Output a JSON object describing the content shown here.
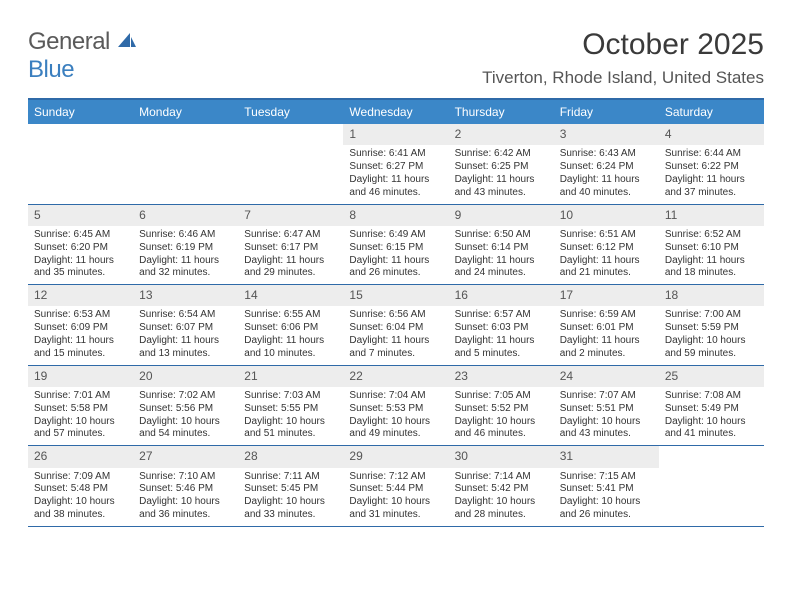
{
  "brand": {
    "left": "General",
    "right": "Blue"
  },
  "title": "October 2025",
  "location": "Tiverton, Rhode Island, United States",
  "colors": {
    "header_bg": "#3b87c8",
    "header_border": "#2f6aa8",
    "daynum_bg": "#ededed",
    "text": "#333333",
    "title_color": "#3a3a3a",
    "location_color": "#555555"
  },
  "dow": [
    "Sunday",
    "Monday",
    "Tuesday",
    "Wednesday",
    "Thursday",
    "Friday",
    "Saturday"
  ],
  "weeks": [
    [
      {
        "num": "",
        "empty": true
      },
      {
        "num": "",
        "empty": true
      },
      {
        "num": "",
        "empty": true
      },
      {
        "num": "1",
        "sunrise": "6:41 AM",
        "sunset": "6:27 PM",
        "dayl1": "Daylight: 11 hours",
        "dayl2": "and 46 minutes."
      },
      {
        "num": "2",
        "sunrise": "6:42 AM",
        "sunset": "6:25 PM",
        "dayl1": "Daylight: 11 hours",
        "dayl2": "and 43 minutes."
      },
      {
        "num": "3",
        "sunrise": "6:43 AM",
        "sunset": "6:24 PM",
        "dayl1": "Daylight: 11 hours",
        "dayl2": "and 40 minutes."
      },
      {
        "num": "4",
        "sunrise": "6:44 AM",
        "sunset": "6:22 PM",
        "dayl1": "Daylight: 11 hours",
        "dayl2": "and 37 minutes."
      }
    ],
    [
      {
        "num": "5",
        "sunrise": "6:45 AM",
        "sunset": "6:20 PM",
        "dayl1": "Daylight: 11 hours",
        "dayl2": "and 35 minutes."
      },
      {
        "num": "6",
        "sunrise": "6:46 AM",
        "sunset": "6:19 PM",
        "dayl1": "Daylight: 11 hours",
        "dayl2": "and 32 minutes."
      },
      {
        "num": "7",
        "sunrise": "6:47 AM",
        "sunset": "6:17 PM",
        "dayl1": "Daylight: 11 hours",
        "dayl2": "and 29 minutes."
      },
      {
        "num": "8",
        "sunrise": "6:49 AM",
        "sunset": "6:15 PM",
        "dayl1": "Daylight: 11 hours",
        "dayl2": "and 26 minutes."
      },
      {
        "num": "9",
        "sunrise": "6:50 AM",
        "sunset": "6:14 PM",
        "dayl1": "Daylight: 11 hours",
        "dayl2": "and 24 minutes."
      },
      {
        "num": "10",
        "sunrise": "6:51 AM",
        "sunset": "6:12 PM",
        "dayl1": "Daylight: 11 hours",
        "dayl2": "and 21 minutes."
      },
      {
        "num": "11",
        "sunrise": "6:52 AM",
        "sunset": "6:10 PM",
        "dayl1": "Daylight: 11 hours",
        "dayl2": "and 18 minutes."
      }
    ],
    [
      {
        "num": "12",
        "sunrise": "6:53 AM",
        "sunset": "6:09 PM",
        "dayl1": "Daylight: 11 hours",
        "dayl2": "and 15 minutes."
      },
      {
        "num": "13",
        "sunrise": "6:54 AM",
        "sunset": "6:07 PM",
        "dayl1": "Daylight: 11 hours",
        "dayl2": "and 13 minutes."
      },
      {
        "num": "14",
        "sunrise": "6:55 AM",
        "sunset": "6:06 PM",
        "dayl1": "Daylight: 11 hours",
        "dayl2": "and 10 minutes."
      },
      {
        "num": "15",
        "sunrise": "6:56 AM",
        "sunset": "6:04 PM",
        "dayl1": "Daylight: 11 hours",
        "dayl2": "and 7 minutes."
      },
      {
        "num": "16",
        "sunrise": "6:57 AM",
        "sunset": "6:03 PM",
        "dayl1": "Daylight: 11 hours",
        "dayl2": "and 5 minutes."
      },
      {
        "num": "17",
        "sunrise": "6:59 AM",
        "sunset": "6:01 PM",
        "dayl1": "Daylight: 11 hours",
        "dayl2": "and 2 minutes."
      },
      {
        "num": "18",
        "sunrise": "7:00 AM",
        "sunset": "5:59 PM",
        "dayl1": "Daylight: 10 hours",
        "dayl2": "and 59 minutes."
      }
    ],
    [
      {
        "num": "19",
        "sunrise": "7:01 AM",
        "sunset": "5:58 PM",
        "dayl1": "Daylight: 10 hours",
        "dayl2": "and 57 minutes."
      },
      {
        "num": "20",
        "sunrise": "7:02 AM",
        "sunset": "5:56 PM",
        "dayl1": "Daylight: 10 hours",
        "dayl2": "and 54 minutes."
      },
      {
        "num": "21",
        "sunrise": "7:03 AM",
        "sunset": "5:55 PM",
        "dayl1": "Daylight: 10 hours",
        "dayl2": "and 51 minutes."
      },
      {
        "num": "22",
        "sunrise": "7:04 AM",
        "sunset": "5:53 PM",
        "dayl1": "Daylight: 10 hours",
        "dayl2": "and 49 minutes."
      },
      {
        "num": "23",
        "sunrise": "7:05 AM",
        "sunset": "5:52 PM",
        "dayl1": "Daylight: 10 hours",
        "dayl2": "and 46 minutes."
      },
      {
        "num": "24",
        "sunrise": "7:07 AM",
        "sunset": "5:51 PM",
        "dayl1": "Daylight: 10 hours",
        "dayl2": "and 43 minutes."
      },
      {
        "num": "25",
        "sunrise": "7:08 AM",
        "sunset": "5:49 PM",
        "dayl1": "Daylight: 10 hours",
        "dayl2": "and 41 minutes."
      }
    ],
    [
      {
        "num": "26",
        "sunrise": "7:09 AM",
        "sunset": "5:48 PM",
        "dayl1": "Daylight: 10 hours",
        "dayl2": "and 38 minutes."
      },
      {
        "num": "27",
        "sunrise": "7:10 AM",
        "sunset": "5:46 PM",
        "dayl1": "Daylight: 10 hours",
        "dayl2": "and 36 minutes."
      },
      {
        "num": "28",
        "sunrise": "7:11 AM",
        "sunset": "5:45 PM",
        "dayl1": "Daylight: 10 hours",
        "dayl2": "and 33 minutes."
      },
      {
        "num": "29",
        "sunrise": "7:12 AM",
        "sunset": "5:44 PM",
        "dayl1": "Daylight: 10 hours",
        "dayl2": "and 31 minutes."
      },
      {
        "num": "30",
        "sunrise": "7:14 AM",
        "sunset": "5:42 PM",
        "dayl1": "Daylight: 10 hours",
        "dayl2": "and 28 minutes."
      },
      {
        "num": "31",
        "sunrise": "7:15 AM",
        "sunset": "5:41 PM",
        "dayl1": "Daylight: 10 hours",
        "dayl2": "and 26 minutes."
      },
      {
        "num": "",
        "empty": true
      }
    ]
  ],
  "labels": {
    "sunrise": "Sunrise:",
    "sunset": "Sunset:"
  }
}
